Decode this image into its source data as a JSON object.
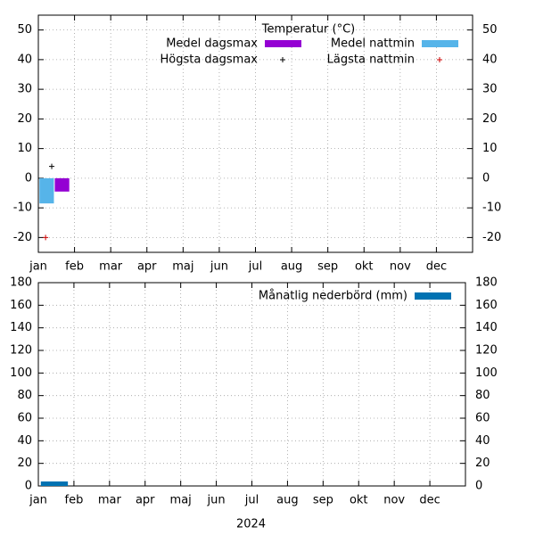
{
  "chart_data": [
    {
      "type": "bar",
      "legend_title": "Temperatur (°C)",
      "categories": [
        "jan",
        "feb",
        "mar",
        "apr",
        "maj",
        "jun",
        "jul",
        "aug",
        "sep",
        "okt",
        "nov",
        "dec"
      ],
      "series": [
        {
          "name": "Medel dagsmax",
          "color": "#9400d3",
          "style": "bar",
          "values": [
            -4.5,
            null,
            null,
            null,
            null,
            null,
            null,
            null,
            null,
            null,
            null,
            null
          ]
        },
        {
          "name": "Medel nattmin",
          "color": "#56b4e9",
          "style": "bar",
          "values": [
            -8.5,
            null,
            null,
            null,
            null,
            null,
            null,
            null,
            null,
            null,
            null,
            null
          ]
        },
        {
          "name": "Högsta dagsmax",
          "color": "#000000",
          "style": "points",
          "values": [
            4,
            null,
            null,
            null,
            null,
            null,
            null,
            null,
            null,
            null,
            null,
            null
          ]
        },
        {
          "name": "Lägsta nattmin",
          "color": "#cc0000",
          "style": "points",
          "values": [
            -20,
            null,
            null,
            null,
            null,
            null,
            null,
            null,
            null,
            null,
            null,
            null
          ]
        }
      ],
      "ylim": [
        -25,
        55
      ],
      "yticks": [
        -20,
        -10,
        0,
        10,
        20,
        30,
        40,
        50
      ],
      "y2lim": [
        -25,
        55
      ],
      "y2ticks": [
        -20,
        -10,
        0,
        10,
        20,
        30,
        40,
        50
      ],
      "grid": true
    },
    {
      "type": "bar",
      "xlabel": "2024",
      "categories": [
        "jan",
        "feb",
        "mar",
        "apr",
        "maj",
        "jun",
        "jul",
        "aug",
        "sep",
        "okt",
        "nov",
        "dec"
      ],
      "series": [
        {
          "name": "Månatlig nederbörd (mm)",
          "color": "#0072b2",
          "style": "bar",
          "values": [
            4,
            null,
            null,
            null,
            null,
            null,
            null,
            null,
            null,
            null,
            null,
            null
          ]
        }
      ],
      "ylim": [
        0,
        180
      ],
      "yticks": [
        0,
        20,
        40,
        60,
        80,
        100,
        120,
        140,
        160,
        180
      ],
      "y2lim": [
        0,
        180
      ],
      "y2ticks": [
        0,
        20,
        40,
        60,
        80,
        100,
        120,
        140,
        160,
        180
      ],
      "grid": true
    }
  ]
}
